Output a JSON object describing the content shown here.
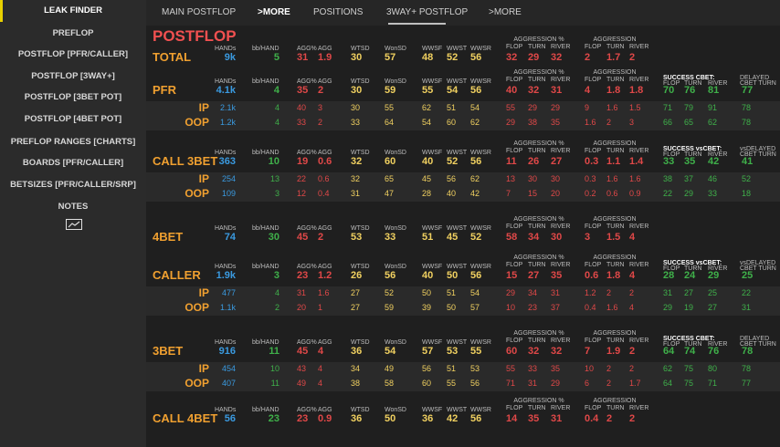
{
  "sidebar": {
    "items": [
      "LEAK FINDER",
      "PREFLOP",
      "POSTFLOP [PFR/CALLER]",
      "POSTFLOP [3WAY+]",
      "POSTFLOP [3BET POT]",
      "POSTFLOP [4BET POT]",
      "PREFLOP RANGES [CHARTS]",
      "BOARDS [PFR/CALLER]",
      "BETSIZES [PFR/CALLER/SRP]",
      "NOTES"
    ],
    "active": 0,
    "chart_icon": "line-chart-icon"
  },
  "tabs": {
    "items": [
      "MAIN POSTFLOP",
      ">MORE",
      "POSITIONS",
      "3WAY+ POSTFLOP",
      ">MORE"
    ],
    "active": 1
  },
  "page_title": "POSTFLOP",
  "headers": {
    "hands": "HANDs",
    "bb": "bb/HAND",
    "aggp": "AGG%",
    "agg": "AGG",
    "wtsd": "WTSD",
    "wonsd": "WonSD",
    "wwsf": "WWSF",
    "wwst": "WWST",
    "wwsr": "WWSR",
    "aggression_pct": "AGGRESSION %",
    "aggression": "AGGRESSION",
    "flop": "FLOP",
    "turn": "TURN",
    "river": "RIVER",
    "success_cbet": "SUCCESS CBET:",
    "success_vs_cbet": "SUCCESS vsCBET:",
    "delayed": "DELAYED",
    "cbet_turn": "CBET TURN",
    "vs_delayed": "vsDELAYED"
  },
  "colors": {
    "sidebar_accent": "#e8d000",
    "title": "#f05050",
    "section": "#f0a030",
    "blue": "#3a9ae0",
    "green": "#3fb04a",
    "red": "#e04848",
    "yellow": "#f0d060"
  },
  "sections": [
    {
      "label": "TOTAL",
      "right": null,
      "rows": [
        {
          "hands": "9k",
          "bb": "5",
          "aggp": "31",
          "agg": "1.9",
          "wtsd": "30",
          "wonsd": "57",
          "wwsf": "48",
          "wwst": "52",
          "wwsr": "56",
          "ap": [
            "32",
            "29",
            "32"
          ],
          "ag": [
            "2",
            "1.7",
            "2"
          ]
        }
      ]
    },
    {
      "label": "PFR",
      "right": {
        "title": "success_cbet",
        "delayed": "delayed"
      },
      "rows": [
        {
          "hands": "4.1k",
          "bb": "4",
          "aggp": "35",
          "agg": "2",
          "wtsd": "30",
          "wonsd": "59",
          "wwsf": "55",
          "wwst": "54",
          "wwsr": "56",
          "ap": [
            "40",
            "32",
            "31"
          ],
          "ag": [
            "4",
            "1.8",
            "1.8"
          ],
          "sc": [
            "70",
            "76",
            "81"
          ],
          "d": "77"
        },
        {
          "sub": "IP",
          "hands": "2.1k",
          "bb": "4",
          "aggp": "40",
          "agg": "3",
          "wtsd": "30",
          "wonsd": "55",
          "wwsf": "62",
          "wwst": "51",
          "wwsr": "54",
          "ap": [
            "55",
            "29",
            "29"
          ],
          "ag": [
            "9",
            "1.6",
            "1.5"
          ],
          "sc": [
            "71",
            "79",
            "91"
          ],
          "d": "78"
        },
        {
          "sub": "OOP",
          "hands": "1.2k",
          "bb": "4",
          "aggp": "33",
          "agg": "2",
          "wtsd": "33",
          "wonsd": "64",
          "wwsf": "54",
          "wwst": "60",
          "wwsr": "62",
          "ap": [
            "29",
            "38",
            "35"
          ],
          "ag": [
            "1.6",
            "2",
            "3"
          ],
          "sc": [
            "66",
            "65",
            "62"
          ],
          "d": "78"
        }
      ]
    },
    {
      "label": "CALL 3BET",
      "right": {
        "title": "success_vs_cbet",
        "delayed": "vs_delayed"
      },
      "rows": [
        {
          "hands": "363",
          "bb": "10",
          "aggp": "19",
          "agg": "0.6",
          "wtsd": "32",
          "wonsd": "60",
          "wwsf": "40",
          "wwst": "52",
          "wwsr": "56",
          "ap": [
            "11",
            "26",
            "27"
          ],
          "ag": [
            "0.3",
            "1.1",
            "1.4"
          ],
          "sc": [
            "33",
            "35",
            "42"
          ],
          "d": "41"
        },
        {
          "sub": "IP",
          "hands": "254",
          "bb": "13",
          "aggp": "22",
          "agg": "0.6",
          "wtsd": "32",
          "wonsd": "65",
          "wwsf": "45",
          "wwst": "56",
          "wwsr": "62",
          "ap": [
            "13",
            "30",
            "30"
          ],
          "ag": [
            "0.3",
            "1.6",
            "1.6"
          ],
          "sc": [
            "38",
            "37",
            "46"
          ],
          "d": "52"
        },
        {
          "sub": "OOP",
          "hands": "109",
          "bb": "3",
          "aggp": "12",
          "agg": "0.4",
          "wtsd": "31",
          "wonsd": "47",
          "wwsf": "28",
          "wwst": "40",
          "wwsr": "42",
          "ap": [
            "7",
            "15",
            "20"
          ],
          "ag": [
            "0.2",
            "0.6",
            "0.9"
          ],
          "sc": [
            "22",
            "29",
            "33"
          ],
          "d": "18"
        }
      ]
    },
    {
      "label": "4BET",
      "right": null,
      "rows": [
        {
          "hands": "74",
          "bb": "30",
          "aggp": "45",
          "agg": "2",
          "wtsd": "53",
          "wonsd": "33",
          "wwsf": "51",
          "wwst": "45",
          "wwsr": "52",
          "ap": [
            "58",
            "34",
            "30"
          ],
          "ag": [
            "3",
            "1.5",
            "4"
          ]
        }
      ]
    },
    {
      "label": "CALLER",
      "right": {
        "title": "success_vs_cbet",
        "delayed": "vs_delayed"
      },
      "rows": [
        {
          "hands": "1.9k",
          "bb": "3",
          "aggp": "23",
          "agg": "1.2",
          "wtsd": "26",
          "wonsd": "56",
          "wwsf": "40",
          "wwst": "50",
          "wwsr": "56",
          "ap": [
            "15",
            "27",
            "35"
          ],
          "ag": [
            "0.6",
            "1.8",
            "4"
          ],
          "sc": [
            "28",
            "24",
            "29"
          ],
          "d": "25"
        },
        {
          "sub": "IP",
          "hands": "477",
          "bb": "4",
          "aggp": "31",
          "agg": "1.6",
          "wtsd": "27",
          "wonsd": "52",
          "wwsf": "50",
          "wwst": "51",
          "wwsr": "54",
          "ap": [
            "29",
            "34",
            "31"
          ],
          "ag": [
            "1.2",
            "2",
            "2"
          ],
          "sc": [
            "31",
            "27",
            "25"
          ],
          "d": "22"
        },
        {
          "sub": "OOP",
          "hands": "1.1k",
          "bb": "2",
          "aggp": "20",
          "agg": "1",
          "wtsd": "27",
          "wonsd": "59",
          "wwsf": "39",
          "wwst": "50",
          "wwsr": "57",
          "ap": [
            "10",
            "23",
            "37"
          ],
          "ag": [
            "0.4",
            "1.6",
            "4"
          ],
          "sc": [
            "29",
            "19",
            "27"
          ],
          "d": "31"
        }
      ]
    },
    {
      "label": "3BET",
      "right": {
        "title": "success_cbet",
        "delayed": "delayed"
      },
      "rows": [
        {
          "hands": "916",
          "bb": "11",
          "aggp": "45",
          "agg": "4",
          "wtsd": "36",
          "wonsd": "54",
          "wwsf": "57",
          "wwst": "53",
          "wwsr": "55",
          "ap": [
            "60",
            "32",
            "32"
          ],
          "ag": [
            "7",
            "1.9",
            "2"
          ],
          "sc": [
            "64",
            "74",
            "76"
          ],
          "d": "78"
        },
        {
          "sub": "IP",
          "hands": "454",
          "bb": "10",
          "aggp": "43",
          "agg": "4",
          "wtsd": "34",
          "wonsd": "49",
          "wwsf": "56",
          "wwst": "51",
          "wwsr": "53",
          "ap": [
            "55",
            "33",
            "35"
          ],
          "ag": [
            "10",
            "2",
            "2"
          ],
          "sc": [
            "62",
            "75",
            "80"
          ],
          "d": "78"
        },
        {
          "sub": "OOP",
          "hands": "407",
          "bb": "11",
          "aggp": "49",
          "agg": "4",
          "wtsd": "38",
          "wonsd": "58",
          "wwsf": "60",
          "wwst": "55",
          "wwsr": "56",
          "ap": [
            "71",
            "31",
            "29"
          ],
          "ag": [
            "6",
            "2",
            "1.7"
          ],
          "sc": [
            "64",
            "75",
            "71"
          ],
          "d": "77"
        }
      ]
    },
    {
      "label": "CALL 4BET",
      "right": null,
      "rows": [
        {
          "hands": "56",
          "bb": "23",
          "aggp": "23",
          "agg": "0.9",
          "wtsd": "36",
          "wonsd": "50",
          "wwsf": "36",
          "wwst": "42",
          "wwsr": "56",
          "ap": [
            "14",
            "35",
            "31"
          ],
          "ag": [
            "0.4",
            "2",
            "2"
          ]
        }
      ]
    }
  ]
}
